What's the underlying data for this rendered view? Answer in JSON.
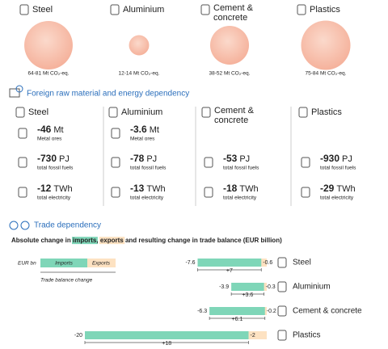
{
  "materials": [
    {
      "name": "Steel",
      "emissions": {
        "values": [
          64,
          81
        ],
        "label": "64-81 Mt CO₂-eq."
      }
    },
    {
      "name": "Aluminium",
      "emissions": {
        "values": [
          12,
          14
        ],
        "label": "12-14 Mt CO₂-eq."
      }
    },
    {
      "name": "Cement &\nconcrete",
      "emissions": {
        "values": [
          38,
          52
        ],
        "label": "38-52 Mt CO₂-eq."
      }
    },
    {
      "name": "Plastics",
      "emissions": {
        "values": [
          75,
          84
        ],
        "label": "75-84 Mt CO₂-eq."
      }
    }
  ],
  "dependency": {
    "title": "Foreign raw material and energy dependency",
    "columns": [
      {
        "name": "Steel",
        "rows": [
          {
            "value": "-46",
            "unit": "Mt",
            "label": "Metal ores"
          },
          {
            "value": "-730",
            "unit": "PJ",
            "label": "total fossil fuels"
          },
          {
            "value": "-12",
            "unit": "TWh",
            "label": "total electricity"
          }
        ]
      },
      {
        "name": "Aluminium",
        "rows": [
          {
            "value": "-3.6",
            "unit": "Mt",
            "label": "Metal ores"
          },
          {
            "value": "-78",
            "unit": "PJ",
            "label": "total fossil fuels"
          },
          {
            "value": "-13",
            "unit": "TWh",
            "label": "total electricity"
          }
        ]
      },
      {
        "name": "Cement &\nconcrete",
        "rows": [
          {
            "value": "-53",
            "unit": "PJ",
            "label": "total fossil fuels"
          },
          {
            "value": "-18",
            "unit": "TWh",
            "label": "total electricity"
          }
        ]
      },
      {
        "name": "Plastics",
        "rows": [
          {
            "value": "-930",
            "unit": "PJ",
            "label": "total fossil fuels"
          },
          {
            "value": "-29",
            "unit": "TWh",
            "label": "total electricity"
          }
        ]
      }
    ]
  },
  "chart_data": {
    "type": "bar",
    "section": "Trade dependency",
    "title": [
      "Absolute change in ",
      "imports",
      ", ",
      "exports",
      " and resulting change in trade balance (EUR billion)"
    ],
    "legend": {
      "unit": "EUR bn",
      "imports": "Imports",
      "exports": "Exports",
      "balance": "Trade balance change"
    },
    "colors": {
      "imports": "#7fd6b8",
      "exports": "#fde2c2"
    },
    "rows": [
      {
        "name": "Steel",
        "imports": -7.6,
        "exports": -0.6,
        "balance": 7,
        "balance_label": "+7"
      },
      {
        "name": "Aluminium",
        "imports": -3.9,
        "exports": -0.3,
        "balance": 3.6,
        "balance_label": "+3.6"
      },
      {
        "name": "Cement & concrete",
        "imports": -6.3,
        "exports": -0.2,
        "balance": 6.1,
        "balance_label": "+6.1"
      },
      {
        "name": "Plastics",
        "imports": -20,
        "exports": -2,
        "balance": 18,
        "balance_label": "+18"
      }
    ]
  }
}
